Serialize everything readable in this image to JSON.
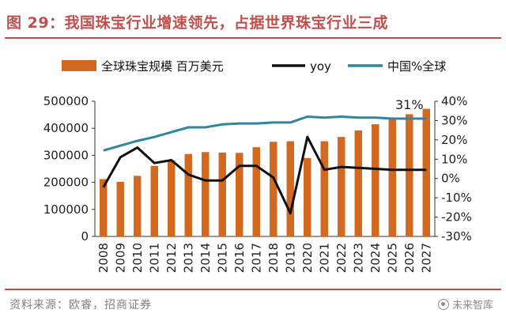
{
  "title": "图 29：我国珠宝行业增速领先，占据世界珠宝行业三成",
  "source": "资料来源：欧睿，招商证券",
  "watermark": "未来智库",
  "colors": {
    "bar": "#d2691e",
    "yoy": "#111111",
    "share": "#2e86a0",
    "accent": "#c0504d"
  },
  "chart_data": {
    "type": "bar",
    "categories": [
      "2008",
      "2009",
      "2010",
      "2011",
      "2012",
      "2013",
      "2014",
      "2015",
      "2016",
      "2017",
      "2018",
      "2019",
      "2020",
      "2021",
      "2022",
      "2023",
      "2024",
      "2025",
      "2026",
      "2027"
    ],
    "series": [
      {
        "name": "全球珠宝规模 百万美元",
        "type": "bar",
        "axis": "left",
        "values": [
          212000,
          202000,
          224000,
          261000,
          281000,
          305000,
          312000,
          310000,
          309000,
          330000,
          350000,
          352000,
          290000,
          352000,
          368000,
          392000,
          415000,
          438000,
          452000,
          472000
        ]
      },
      {
        "name": "yoy",
        "type": "line",
        "axis": "right",
        "values": [
          -4.5,
          11.0,
          16.0,
          8.0,
          9.5,
          2.0,
          -1.0,
          -1.0,
          6.5,
          6.5,
          0.5,
          -18.0,
          21.5,
          4.5,
          6.0,
          5.5,
          5.0,
          4.5,
          4.5,
          4.5
        ]
      },
      {
        "name": "中国%全球",
        "type": "line",
        "axis": "right",
        "values": [
          14.5,
          17.0,
          19.5,
          21.5,
          24.0,
          26.5,
          26.5,
          28.0,
          28.5,
          28.5,
          29.0,
          29.0,
          32.0,
          31.5,
          32.0,
          31.5,
          31.5,
          31.0,
          31.0,
          31.0
        ]
      }
    ],
    "y_left": {
      "min": 0,
      "max": 500000,
      "ticks": [
        "0",
        "100000",
        "200000",
        "300000",
        "400000",
        "500000"
      ]
    },
    "y_right": {
      "min": -30,
      "max": 40,
      "ticks": [
        "-30%",
        "-20%",
        "-10%",
        "0%",
        "10%",
        "20%",
        "30%",
        "40%"
      ]
    },
    "annotation": {
      "text": "31%",
      "category": "2026",
      "series": "中国%全球"
    },
    "legend_position": "top"
  }
}
